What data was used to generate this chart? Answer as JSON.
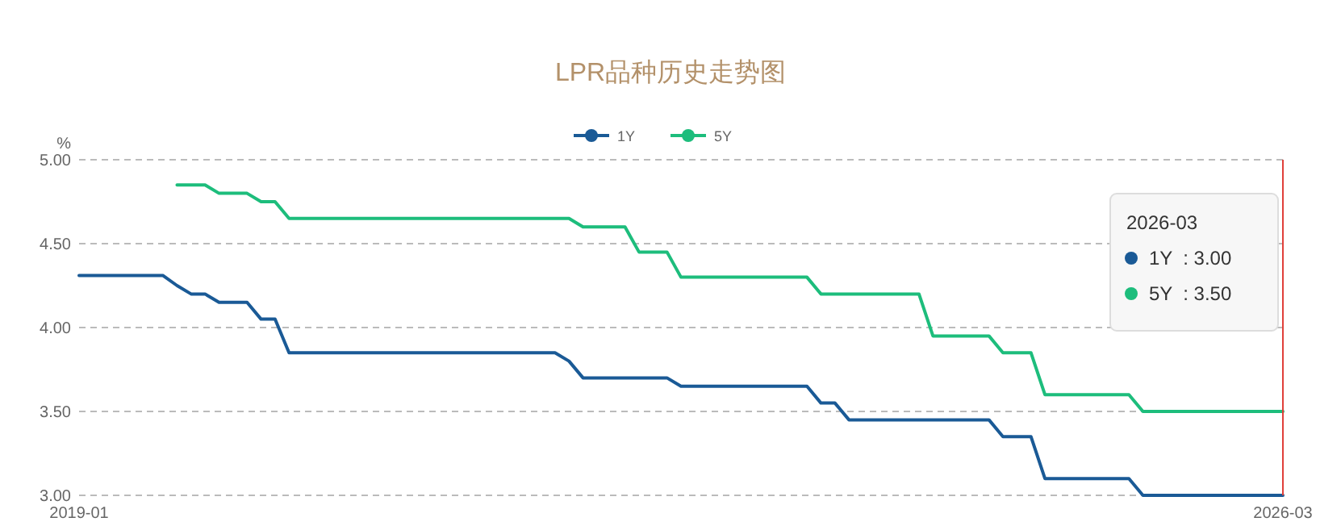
{
  "chart_data": {
    "type": "line",
    "title": "LPR品种历史走势图",
    "ylabel": "%",
    "x": [
      "2019-01",
      "2019-02",
      "2019-03",
      "2019-04",
      "2019-05",
      "2019-06",
      "2019-07",
      "2019-08",
      "2019-09",
      "2019-10",
      "2019-11",
      "2019-12",
      "2020-01",
      "2020-02",
      "2020-03",
      "2020-04",
      "2020-05",
      "2020-06",
      "2020-07",
      "2020-08",
      "2020-09",
      "2020-10",
      "2020-11",
      "2020-12",
      "2021-01",
      "2021-02",
      "2021-03",
      "2021-04",
      "2021-05",
      "2021-06",
      "2021-07",
      "2021-08",
      "2021-09",
      "2021-10",
      "2021-11",
      "2021-12",
      "2022-01",
      "2022-02",
      "2022-03",
      "2022-04",
      "2022-05",
      "2022-06",
      "2022-07",
      "2022-08",
      "2022-09",
      "2022-10",
      "2022-11",
      "2022-12",
      "2023-01",
      "2023-02",
      "2023-03",
      "2023-04",
      "2023-05",
      "2023-06",
      "2023-07",
      "2023-08",
      "2023-09",
      "2023-10",
      "2023-11",
      "2023-12",
      "2024-01",
      "2024-02",
      "2024-03",
      "2024-04",
      "2024-05",
      "2024-06",
      "2024-07",
      "2024-08",
      "2024-09",
      "2024-10",
      "2024-11",
      "2024-12",
      "2025-01",
      "2025-02",
      "2025-03",
      "2025-04",
      "2025-05",
      "2025-06",
      "2025-07",
      "2025-08",
      "2025-09",
      "2025-10",
      "2025-11",
      "2025-12",
      "2026-01",
      "2026-02",
      "2026-03"
    ],
    "series": [
      {
        "name": "1Y",
        "color": "#1a5a96",
        "values": [
          4.31,
          4.31,
          4.31,
          4.31,
          4.31,
          4.31,
          4.31,
          4.25,
          4.2,
          4.2,
          4.15,
          4.15,
          4.15,
          4.05,
          4.05,
          3.85,
          3.85,
          3.85,
          3.85,
          3.85,
          3.85,
          3.85,
          3.85,
          3.85,
          3.85,
          3.85,
          3.85,
          3.85,
          3.85,
          3.85,
          3.85,
          3.85,
          3.85,
          3.85,
          3.85,
          3.8,
          3.7,
          3.7,
          3.7,
          3.7,
          3.7,
          3.7,
          3.7,
          3.65,
          3.65,
          3.65,
          3.65,
          3.65,
          3.65,
          3.65,
          3.65,
          3.65,
          3.65,
          3.55,
          3.55,
          3.45,
          3.45,
          3.45,
          3.45,
          3.45,
          3.45,
          3.45,
          3.45,
          3.45,
          3.45,
          3.45,
          3.35,
          3.35,
          3.35,
          3.1,
          3.1,
          3.1,
          3.1,
          3.1,
          3.1,
          3.1,
          3.0,
          3.0,
          3.0,
          3.0,
          3.0,
          3.0,
          3.0,
          3.0,
          3.0,
          3.0,
          3.0
        ]
      },
      {
        "name": "5Y",
        "color": "#1dbd7c",
        "values": [
          null,
          null,
          null,
          null,
          null,
          null,
          null,
          4.85,
          4.85,
          4.85,
          4.8,
          4.8,
          4.8,
          4.75,
          4.75,
          4.65,
          4.65,
          4.65,
          4.65,
          4.65,
          4.65,
          4.65,
          4.65,
          4.65,
          4.65,
          4.65,
          4.65,
          4.65,
          4.65,
          4.65,
          4.65,
          4.65,
          4.65,
          4.65,
          4.65,
          4.65,
          4.6,
          4.6,
          4.6,
          4.6,
          4.45,
          4.45,
          4.45,
          4.3,
          4.3,
          4.3,
          4.3,
          4.3,
          4.3,
          4.3,
          4.3,
          4.3,
          4.3,
          4.2,
          4.2,
          4.2,
          4.2,
          4.2,
          4.2,
          4.2,
          4.2,
          3.95,
          3.95,
          3.95,
          3.95,
          3.95,
          3.85,
          3.85,
          3.85,
          3.6,
          3.6,
          3.6,
          3.6,
          3.6,
          3.6,
          3.6,
          3.5,
          3.5,
          3.5,
          3.5,
          3.5,
          3.5,
          3.5,
          3.5,
          3.5,
          3.5,
          3.5
        ]
      }
    ],
    "xlim": [
      "2019-01",
      "2026-03"
    ],
    "xticks": [
      "2019-01",
      "2026-03"
    ],
    "ylim": [
      3.0,
      5.0
    ],
    "yticks": [
      {
        "value": 3.0,
        "label": "3.00"
      },
      {
        "value": 3.5,
        "label": "3.50"
      },
      {
        "value": 4.0,
        "label": "4.00"
      },
      {
        "value": 4.5,
        "label": "4.50"
      },
      {
        "value": 5.0,
        "label": "5.00"
      }
    ],
    "ref_lines": [
      {
        "axis": "x",
        "value": "2026-03",
        "color": "#e0403a"
      }
    ],
    "annotations": [
      "2026-03",
      "1Y  : 3.00",
      "5Y  : 3.50"
    ],
    "grid": "y",
    "legend": "top",
    "line_style": "solid"
  }
}
